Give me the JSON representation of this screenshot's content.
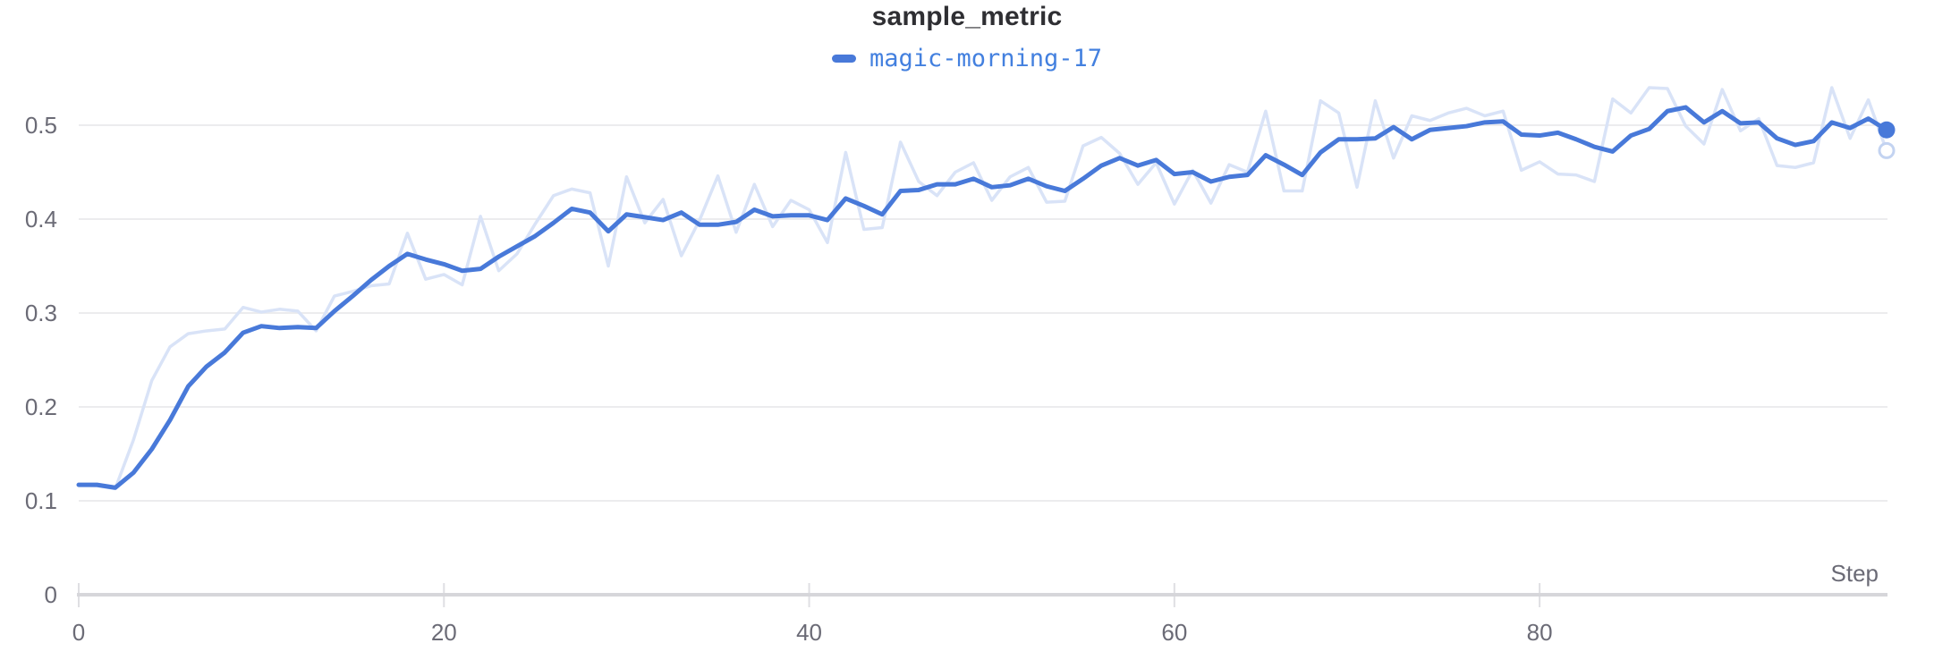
{
  "theme": {
    "accent": "#4879d9",
    "raw_line": "#d9e3f7",
    "raw_ring": "#c3d3f1",
    "grid": "#ececee",
    "axis_line": "#d6d6da",
    "tick_mark": "#dfdfe3",
    "axis_text": "#6b6b76",
    "title_text": "#2f2f33",
    "legend_text": "#4380df",
    "background": "#ffffff"
  },
  "chart_data": {
    "type": "line",
    "title": "sample_metric",
    "xlabel": "Step",
    "ylabel": "",
    "grid": true,
    "legend_position": "top",
    "xlim": [
      0,
      99
    ],
    "ylim": [
      0,
      0.543
    ],
    "x": {
      "start": 0,
      "step": 1,
      "count": 100
    },
    "x_tick_values": [
      0,
      20,
      40,
      60,
      80
    ],
    "x_tick_labels": [
      "0",
      "20",
      "40",
      "60",
      "80"
    ],
    "y_tick_values": [
      0,
      0.1,
      0.2,
      0.3,
      0.4,
      0.5
    ],
    "y_tick_labels": [
      "0",
      "0.1",
      "0.2",
      "0.3",
      "0.4",
      "0.5"
    ],
    "series": [
      {
        "name": "magic-morning-17 (raw)",
        "role": "raw-unsmoothed",
        "values": [
          0.117,
          0.116,
          0.113,
          0.165,
          0.228,
          0.264,
          0.278,
          0.281,
          0.283,
          0.306,
          0.301,
          0.304,
          0.302,
          0.281,
          0.318,
          0.323,
          0.329,
          0.331,
          0.385,
          0.336,
          0.341,
          0.33,
          0.403,
          0.345,
          0.363,
          0.395,
          0.425,
          0.432,
          0.428,
          0.35,
          0.445,
          0.396,
          0.421,
          0.361,
          0.399,
          0.446,
          0.386,
          0.437,
          0.392,
          0.42,
          0.41,
          0.375,
          0.471,
          0.389,
          0.391,
          0.482,
          0.44,
          0.425,
          0.45,
          0.46,
          0.42,
          0.445,
          0.455,
          0.418,
          0.419,
          0.478,
          0.487,
          0.47,
          0.437,
          0.46,
          0.416,
          0.452,
          0.417,
          0.458,
          0.45,
          0.515,
          0.43,
          0.43,
          0.526,
          0.513,
          0.434,
          0.526,
          0.465,
          0.51,
          0.505,
          0.513,
          0.518,
          0.51,
          0.515,
          0.452,
          0.461,
          0.448,
          0.447,
          0.44,
          0.528,
          0.513,
          0.54,
          0.539,
          0.499,
          0.48,
          0.538,
          0.494,
          0.507,
          0.457,
          0.455,
          0.46,
          0.54,
          0.486,
          0.527,
          0.473
        ]
      },
      {
        "name": "magic-morning-17",
        "role": "smoothed",
        "values": [
          0.117,
          0.117,
          0.114,
          0.13,
          0.155,
          0.186,
          0.222,
          0.243,
          0.258,
          0.279,
          0.286,
          0.284,
          0.285,
          0.284,
          0.302,
          0.318,
          0.335,
          0.35,
          0.363,
          0.357,
          0.352,
          0.345,
          0.347,
          0.36,
          0.371,
          0.382,
          0.396,
          0.411,
          0.407,
          0.387,
          0.405,
          0.402,
          0.399,
          0.407,
          0.394,
          0.394,
          0.397,
          0.41,
          0.403,
          0.404,
          0.404,
          0.399,
          0.422,
          0.414,
          0.405,
          0.43,
          0.431,
          0.437,
          0.437,
          0.443,
          0.434,
          0.436,
          0.443,
          0.435,
          0.43,
          0.443,
          0.457,
          0.465,
          0.457,
          0.463,
          0.448,
          0.45,
          0.44,
          0.445,
          0.447,
          0.468,
          0.458,
          0.447,
          0.471,
          0.485,
          0.485,
          0.486,
          0.498,
          0.485,
          0.495,
          0.497,
          0.499,
          0.503,
          0.504,
          0.49,
          0.489,
          0.492,
          0.485,
          0.477,
          0.472,
          0.489,
          0.496,
          0.515,
          0.519,
          0.503,
          0.515,
          0.502,
          0.503,
          0.486,
          0.479,
          0.483,
          0.503,
          0.497,
          0.507,
          0.495
        ]
      }
    ]
  }
}
